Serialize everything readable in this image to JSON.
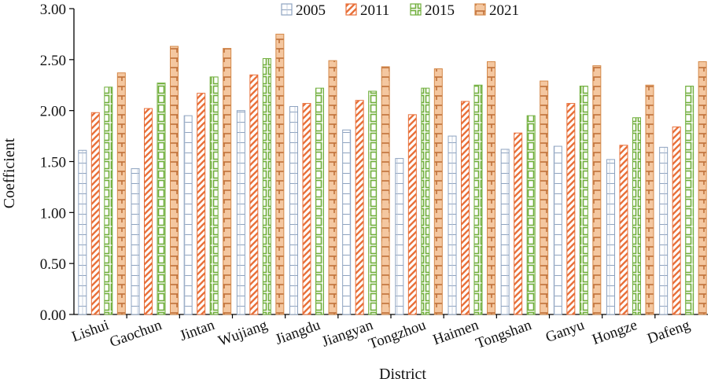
{
  "chart_data": {
    "type": "bar",
    "xlabel": "District",
    "ylabel": "Coefficient",
    "ylim": [
      0,
      3.0
    ],
    "yticks": [
      "0.00",
      "0.50",
      "1.00",
      "1.50",
      "2.00",
      "2.50",
      "3.00"
    ],
    "categories": [
      "Lishui",
      "Gaochun",
      "Jintan",
      "Wujiang",
      "Jiangdu",
      "Jiangyan",
      "Tongzhou",
      "Haimen",
      "Tongshan",
      "Ganyu",
      "Hongze",
      "Dafeng"
    ],
    "series": [
      {
        "name": "2005",
        "color": "#8ea3c0",
        "pattern": "grid",
        "values": [
          1.61,
          1.43,
          1.95,
          2.0,
          2.04,
          1.81,
          1.53,
          1.75,
          1.62,
          1.65,
          1.52,
          1.64
        ]
      },
      {
        "name": "2011",
        "color": "#e8703a",
        "pattern": "diagonal",
        "values": [
          1.98,
          2.02,
          2.17,
          2.35,
          2.07,
          2.1,
          1.96,
          2.09,
          1.78,
          2.07,
          1.66,
          1.84
        ]
      },
      {
        "name": "2015",
        "color": "#6fae3a",
        "pattern": "box",
        "values": [
          2.23,
          2.27,
          2.33,
          2.51,
          2.22,
          2.19,
          2.22,
          2.25,
          1.95,
          2.24,
          1.93,
          2.24
        ]
      },
      {
        "name": "2021",
        "color": "#d4894a",
        "pattern": "brick",
        "values": [
          2.37,
          2.63,
          2.61,
          2.75,
          2.49,
          2.43,
          2.41,
          2.48,
          2.29,
          2.44,
          2.25,
          2.48
        ]
      }
    ],
    "legend_position": "top",
    "grid": false
  }
}
